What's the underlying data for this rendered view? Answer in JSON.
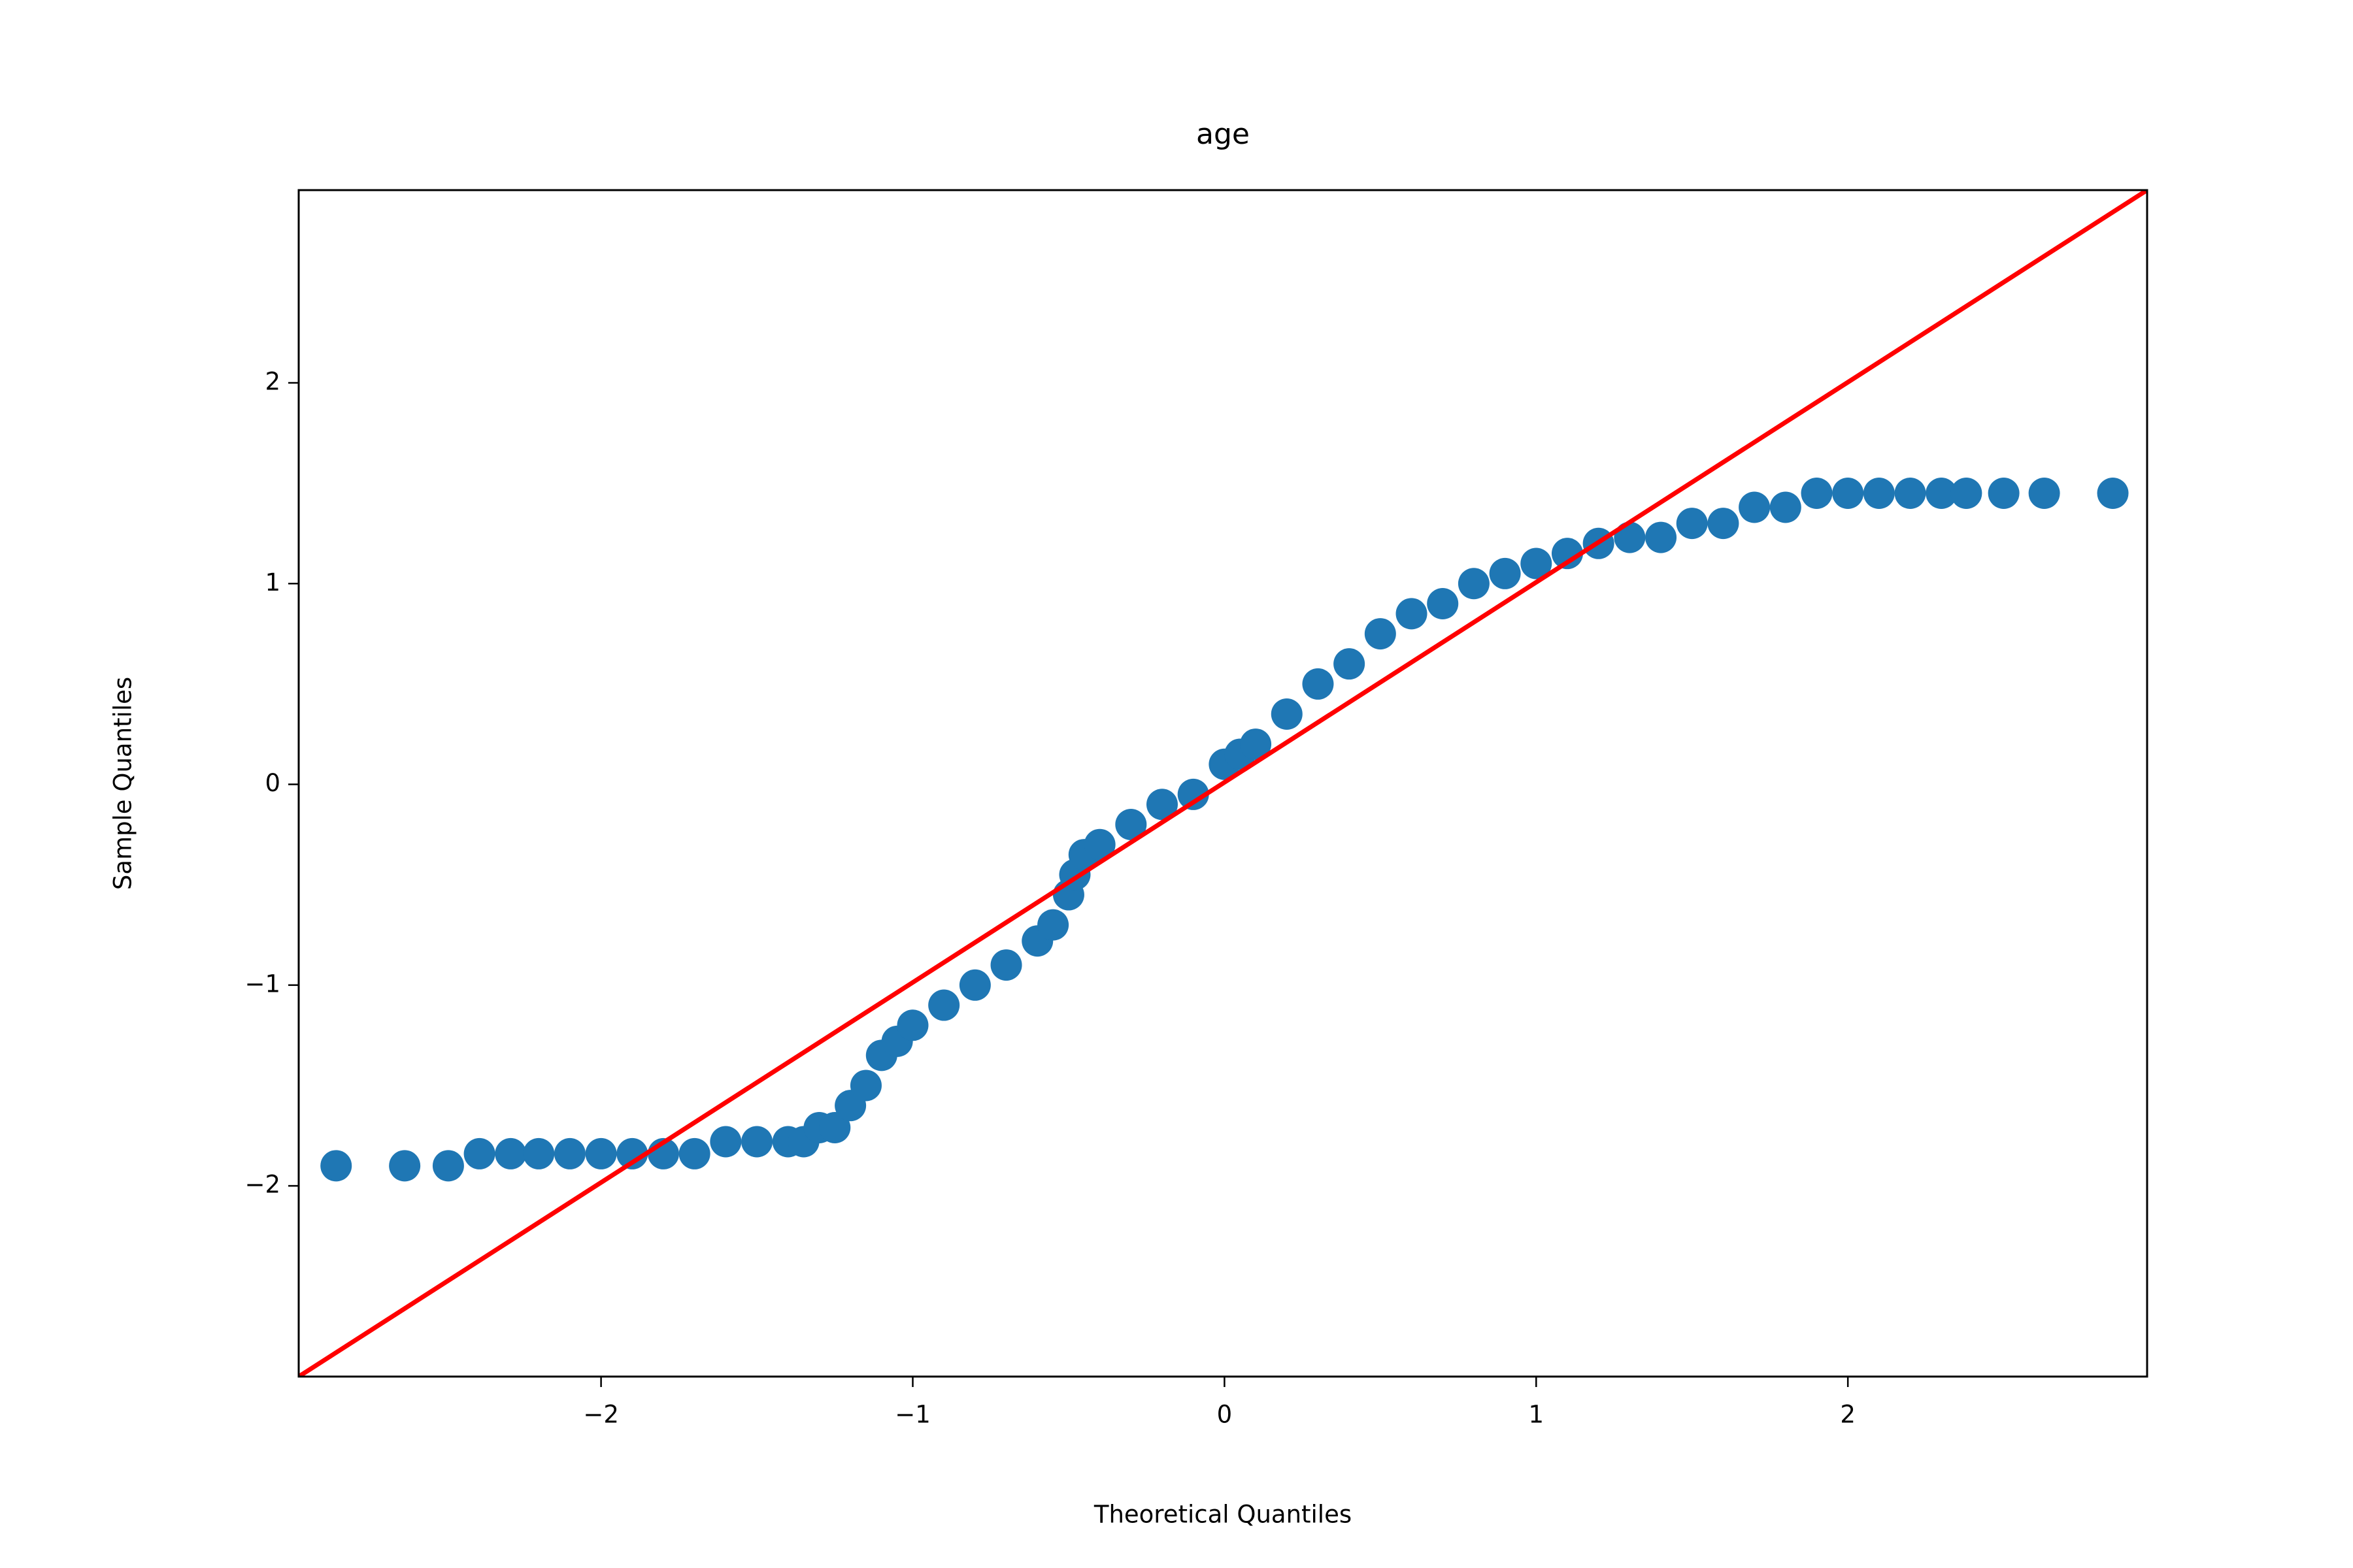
{
  "chart_data": {
    "type": "scatter",
    "title": "age",
    "x_label": "Theoretical Quantiles",
    "y_label": "Sample Quantiles",
    "series": [
      {
        "color": "#1f77b4",
        "x": [
          -2.85,
          -2.63,
          -2.49,
          -2.39,
          -2.29,
          -2.2,
          -2.1,
          -2.0,
          -1.9,
          -1.8,
          -1.7,
          -1.6,
          -1.5,
          -1.4,
          -1.35,
          -1.3,
          -1.25,
          -1.2,
          -1.15,
          -1.1,
          -1.05,
          -1.0,
          -0.9,
          -0.8,
          -0.7,
          -0.6,
          -0.55,
          -0.5,
          -0.48,
          -0.45,
          -0.4,
          -0.3,
          -0.2,
          -0.1,
          0,
          0.05,
          0.1,
          0.2,
          0.3,
          0.4,
          0.5,
          0.6,
          0.7,
          0.8,
          0.9,
          1.0,
          1.1,
          1.2,
          1.3,
          1.4,
          1.5,
          1.6,
          1.7,
          1.8,
          1.9,
          2.0,
          2.1,
          2.2,
          2.3,
          2.38,
          2.5,
          2.63,
          2.85
        ],
        "values": [
          -1.9,
          -1.9,
          -1.9,
          -1.84,
          -1.84,
          -1.84,
          -1.84,
          -1.84,
          -1.84,
          -1.84,
          -1.84,
          -1.78,
          -1.78,
          -1.78,
          -1.78,
          -1.71,
          -1.71,
          -1.6,
          -1.5,
          -1.35,
          -1.28,
          -1.2,
          -1.1,
          -1.0,
          -0.9,
          -0.78,
          -0.7,
          -0.55,
          -0.45,
          -0.35,
          -0.3,
          -0.2,
          -0.1,
          -0.05,
          0.1,
          0.15,
          0.2,
          0.35,
          0.5,
          0.6,
          0.75,
          0.85,
          0.9,
          1.0,
          1.05,
          1.1,
          1.15,
          1.2,
          1.23,
          1.23,
          1.3,
          1.3,
          1.38,
          1.38,
          1.45,
          1.45,
          1.45,
          1.45,
          1.45,
          1.45,
          1.45,
          1.45,
          1.45
        ]
      }
    ],
    "reference_line": {
      "color": "red",
      "x": [
        -2.97,
        2.96
      ],
      "values": [
        -2.95,
        2.96
      ]
    },
    "xlim": [
      -2.97,
      2.96
    ],
    "ylim": [
      -2.95,
      2.96
    ],
    "xticks": [
      {
        "value": -2,
        "label": "−2"
      },
      {
        "value": -1,
        "label": "−1"
      },
      0,
      1,
      2
    ],
    "yticks": [
      {
        "value": -2,
        "label": "−2"
      },
      {
        "value": -1,
        "label": "−1"
      },
      0,
      1,
      2
    ],
    "grid": false
  }
}
